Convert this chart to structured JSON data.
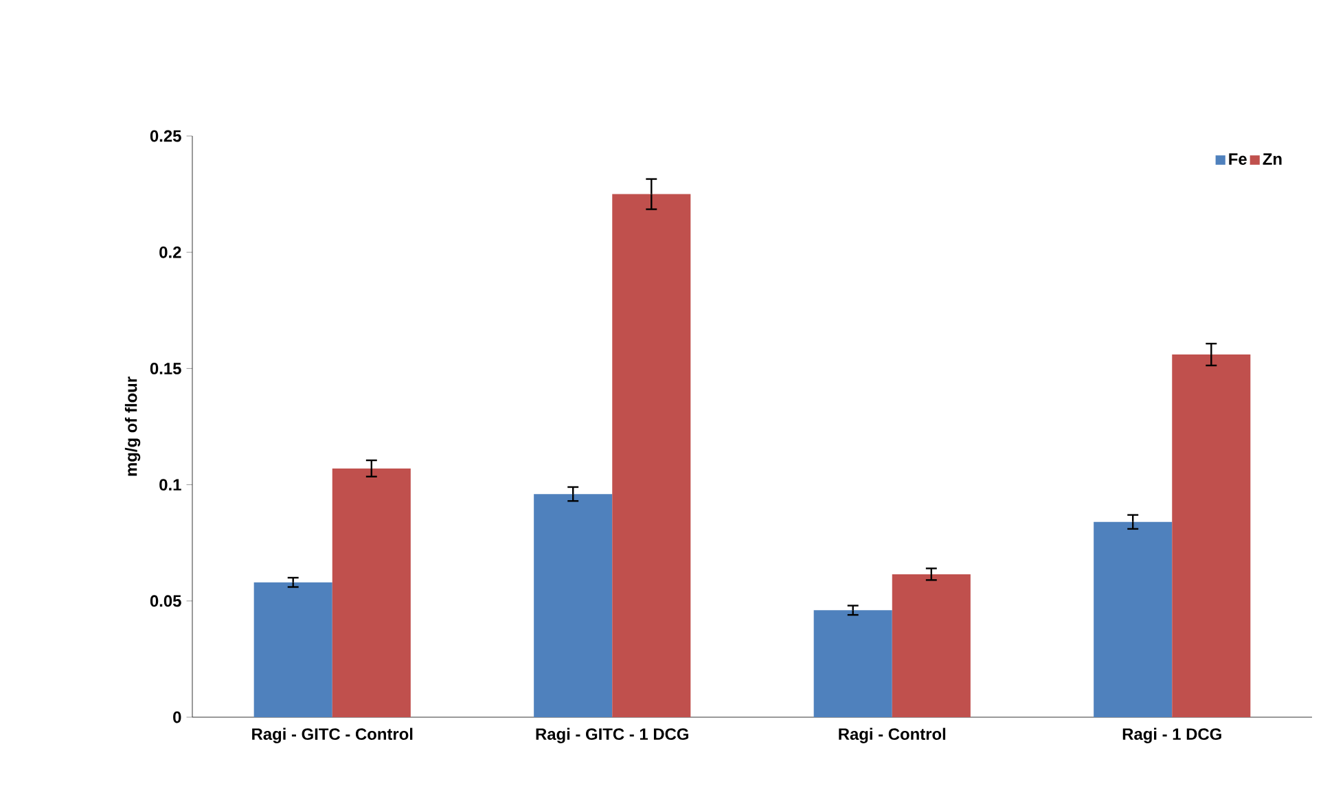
{
  "chart_data": {
    "type": "bar",
    "ylabel": "mg/g of flour",
    "categories": [
      "Ragi - GITC - Control",
      "Ragi - GITC - 1 DCG",
      "Ragi - Control",
      "Ragi - 1 DCG"
    ],
    "series": [
      {
        "name": "Fe",
        "color": "#4f81bd",
        "values": [
          0.058,
          0.096,
          0.046,
          0.084
        ],
        "errors": [
          0.002,
          0.003,
          0.002,
          0.003
        ]
      },
      {
        "name": "Zn",
        "color": "#c0504d",
        "values": [
          0.107,
          0.225,
          0.0615,
          0.156
        ],
        "errors": [
          0.0035,
          0.0065,
          0.0025,
          0.0047
        ]
      }
    ],
    "ylim": [
      0,
      0.25
    ],
    "yticks": [
      0,
      0.05,
      0.1,
      0.15,
      0.2,
      0.25
    ],
    "legend": "top right"
  }
}
